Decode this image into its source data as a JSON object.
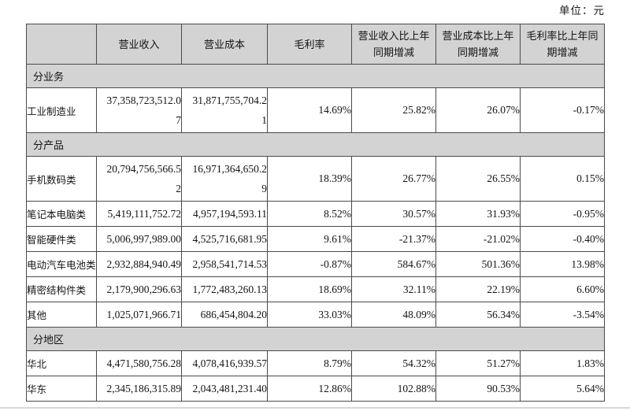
{
  "unit_label": "单位：元",
  "table": {
    "columns": [
      "",
      "营业收入",
      "营业成本",
      "毛利率",
      "营业收入比上年同期增减",
      "营业成本比上年同期增减",
      "毛利率比上年同期增减"
    ],
    "sections": [
      {
        "id": "by-business",
        "title": "分业务",
        "rows": [
          {
            "label": "工业制造业",
            "revenue": "37,358,723,512.07",
            "cost": "31,871,755,704.21",
            "margin": "14.69%",
            "revenue_yoy": "25.82%",
            "cost_yoy": "26.07%",
            "margin_yoy": "-0.17%",
            "wrap": true
          }
        ]
      },
      {
        "id": "by-product",
        "title": "分产品",
        "rows": [
          {
            "label": "手机数码类",
            "revenue": "20,794,756,566.52",
            "cost": "16,971,364,650.29",
            "margin": "18.39%",
            "revenue_yoy": "26.77%",
            "cost_yoy": "26.55%",
            "margin_yoy": "0.15%",
            "wrap": true
          },
          {
            "label": "笔记本电脑类",
            "revenue": "5,419,111,752.72",
            "cost": "4,957,194,593.11",
            "margin": "8.52%",
            "revenue_yoy": "30.57%",
            "cost_yoy": "31.93%",
            "margin_yoy": "-0.95%",
            "wrap": false
          },
          {
            "label": "智能硬件类",
            "revenue": "5,006,997,989.00",
            "cost": "4,525,716,681.95",
            "margin": "9.61%",
            "revenue_yoy": "-21.37%",
            "cost_yoy": "-21.02%",
            "margin_yoy": "-0.40%",
            "wrap": false
          },
          {
            "label": "电动汽车电池类",
            "revenue": "2,932,884,940.49",
            "cost": "2,958,541,714.53",
            "margin": "-0.87%",
            "revenue_yoy": "584.67%",
            "cost_yoy": "501.36%",
            "margin_yoy": "13.98%",
            "wrap": false
          },
          {
            "label": "精密结构件类",
            "revenue": "2,179,900,296.63",
            "cost": "1,772,483,260.13",
            "margin": "18.69%",
            "revenue_yoy": "32.11%",
            "cost_yoy": "22.19%",
            "margin_yoy": "6.60%",
            "wrap": false
          },
          {
            "label": "其他",
            "revenue": "1,025,071,966.71",
            "cost": "686,454,804.20",
            "margin": "33.03%",
            "revenue_yoy": "48.09%",
            "cost_yoy": "56.34%",
            "margin_yoy": "-3.54%",
            "wrap": false
          }
        ]
      },
      {
        "id": "by-region",
        "title": "分地区",
        "rows": [
          {
            "label": "华北",
            "revenue": "4,471,580,756.28",
            "cost": "4,078,416,939.57",
            "margin": "8.79%",
            "revenue_yoy": "54.32%",
            "cost_yoy": "51.27%",
            "margin_yoy": "1.83%",
            "wrap": false
          },
          {
            "label": "华东",
            "revenue": "2,345,186,315.89",
            "cost": "2,043,481,231.40",
            "margin": "12.86%",
            "revenue_yoy": "102.88%",
            "cost_yoy": "90.53%",
            "margin_yoy": "5.64%",
            "wrap": false
          }
        ]
      }
    ]
  }
}
